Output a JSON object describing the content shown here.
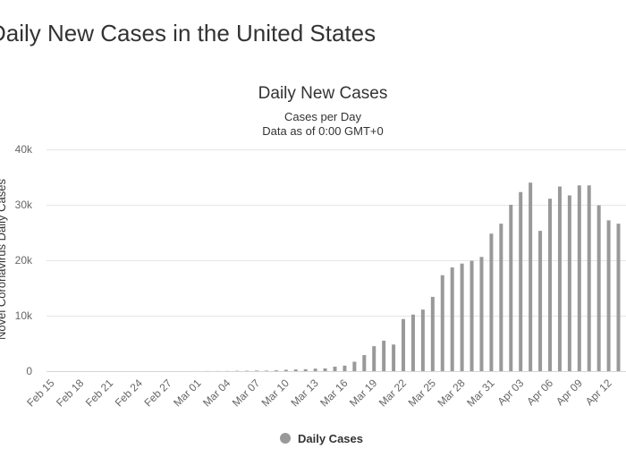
{
  "page_title": "Daily New Cases in the United States",
  "chart_data": {
    "type": "bar",
    "title": "Daily New Cases",
    "subtitle": [
      "Cases per Day",
      "Data as of 0:00 GMT+0"
    ],
    "y_label": "Novel Coronavirus Daily Cases",
    "categories": [
      "Feb 15",
      null,
      null,
      "Feb 18",
      null,
      null,
      "Feb 21",
      null,
      null,
      "Feb 24",
      null,
      null,
      "Feb 27",
      null,
      null,
      "Mar 01",
      null,
      null,
      "Mar 04",
      null,
      null,
      "Mar 07",
      null,
      null,
      "Mar 10",
      null,
      null,
      "Mar 13",
      null,
      null,
      "Mar 16",
      null,
      null,
      "Mar 19",
      null,
      null,
      "Mar 22",
      null,
      null,
      "Mar 25",
      null,
      null,
      "Mar 28",
      null,
      null,
      "Mar 31",
      null,
      null,
      "Apr 03",
      null,
      null,
      "Apr 06",
      null,
      null,
      "Apr 09",
      null,
      null,
      "Apr 12",
      null
    ],
    "series": [
      {
        "name": "Daily Cases",
        "color": "#999999",
        "values": [
          0,
          0,
          0,
          0,
          0,
          0,
          0,
          0,
          0,
          0,
          0,
          0,
          0,
          0,
          0,
          10,
          20,
          20,
          30,
          60,
          70,
          100,
          90,
          150,
          250,
          300,
          350,
          450,
          500,
          800,
          1000,
          1700,
          2900,
          4500,
          5500,
          4800,
          9400,
          10200,
          11100,
          13400,
          17300,
          18700,
          19400,
          19900,
          20600,
          24800,
          26600,
          30000,
          32300,
          34000,
          25300,
          31100,
          33300,
          31700,
          33500,
          33500,
          29900,
          27200,
          26600
        ]
      }
    ],
    "ylim": [
      0,
      40000
    ],
    "yticks": [
      0,
      {
        "value": 10000,
        "label": "10k"
      },
      {
        "value": 20000,
        "label": "20k"
      },
      {
        "value": 30000,
        "label": "30k"
      },
      {
        "value": 40000,
        "label": "40k"
      }
    ],
    "grid": true
  }
}
